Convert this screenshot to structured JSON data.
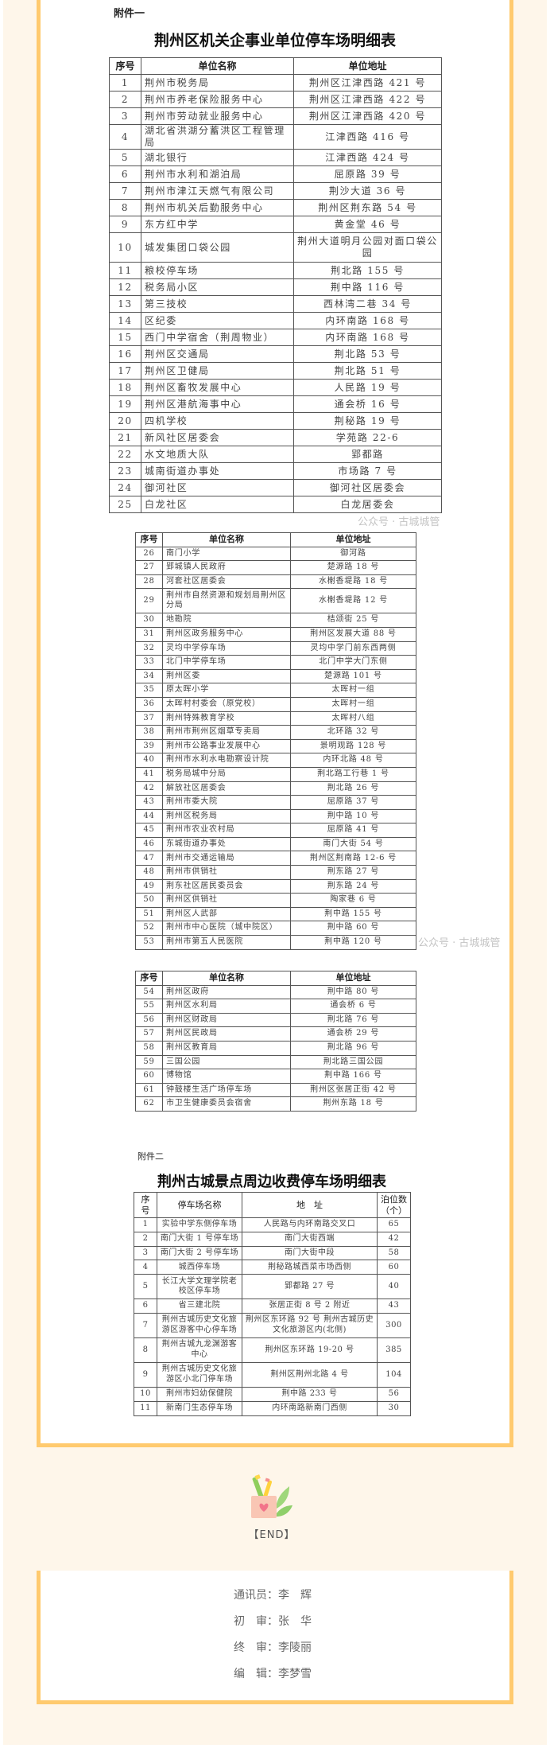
{
  "watermark": "公众号 · 古城城管",
  "annex1": {
    "label": "附件一",
    "title": "荆州区机关企事业单位停车场明细表",
    "headers": [
      "序号",
      "单位名称",
      "单位地址"
    ],
    "rows": [
      [
        "1",
        "荆州市税务局",
        "荆州区江津西路 421 号"
      ],
      [
        "2",
        "荆州市养老保险服务中心",
        "荆州区江津西路 422 号"
      ],
      [
        "3",
        "荆州市劳动就业服务中心",
        "荆州区江津西路 420 号"
      ],
      [
        "4",
        "湖北省洪湖分蓄洪区工程管理局",
        "江津西路 416 号"
      ],
      [
        "5",
        "湖北银行",
        "江津西路 424 号"
      ],
      [
        "6",
        "荆州市水利和湖泊局",
        "屈原路 39 号"
      ],
      [
        "7",
        "荆州市津江天燃气有限公司",
        "荆沙大道 36 号"
      ],
      [
        "8",
        "荆州市机关后勤服务中心",
        "荆州区荆东路 54 号"
      ],
      [
        "9",
        "东方红中学",
        "黄金堂 46 号"
      ],
      [
        "10",
        "城发集团口袋公园",
        "荆州大道明月公园对面口袋公园"
      ],
      [
        "11",
        "粮校停车场",
        "荆北路 155 号"
      ],
      [
        "12",
        "税务局小区",
        "荆中路 116 号"
      ],
      [
        "13",
        "第三技校",
        "西林湾二巷 34 号"
      ],
      [
        "14",
        "区纪委",
        "内环南路 168 号"
      ],
      [
        "15",
        "西门中学宿舍（荆周物业）",
        "内环南路 168 号"
      ],
      [
        "16",
        "荆州区交通局",
        "荆北路 53 号"
      ],
      [
        "17",
        "荆州区卫健局",
        "荆北路 51 号"
      ],
      [
        "18",
        "荆州区畜牧发展中心",
        "人民路 19 号"
      ],
      [
        "19",
        "荆州区港航海事中心",
        "通会桥 16 号"
      ],
      [
        "20",
        "四机学校",
        "荆秘路 19 号"
      ],
      [
        "21",
        "新风社区居委会",
        "学苑路 22-6"
      ],
      [
        "22",
        "水文地质大队",
        "郢都路"
      ],
      [
        "23",
        "城南街道办事处",
        "市场路 7 号"
      ],
      [
        "24",
        "御河社区",
        "御河社区居委会"
      ],
      [
        "25",
        "白龙社区",
        "白龙居委会"
      ]
    ],
    "rows_b": [
      [
        "26",
        "南门小学",
        "御河路"
      ],
      [
        "27",
        "郢城镇人民政府",
        "楚源路 18 号"
      ],
      [
        "28",
        "河套社区居委会",
        "水榭香堤路 18 号"
      ],
      [
        "29",
        "荆州市自然资源和规划局荆州区分局",
        "水榭香堤路 12 号"
      ],
      [
        "30",
        "地勘院",
        "桔颂街 25 号"
      ],
      [
        "31",
        "荆州区政务服务中心",
        "荆州区发展大道 88 号"
      ],
      [
        "32",
        "灵均中学停车场",
        "灵均中学门前东西两侧"
      ],
      [
        "33",
        "北门中学停车场",
        "北门中学大门东侧"
      ],
      [
        "34",
        "荆州区委",
        "楚源路 101 号"
      ],
      [
        "35",
        "原太晖小学",
        "太晖村一组"
      ],
      [
        "36",
        "太晖村村委会（原党校）",
        "太晖村一组"
      ],
      [
        "37",
        "荆州特殊教育学校",
        "太晖村八组"
      ],
      [
        "38",
        "荆州市荆州区烟草专卖局",
        "北环路 32 号"
      ],
      [
        "39",
        "荆州市公路事业发展中心",
        "景明观路 128 号"
      ],
      [
        "40",
        "荆州市水利水电勘察设计院",
        "内环北路 48 号"
      ],
      [
        "41",
        "税务局城中分局",
        "荆北路工行巷 1 号"
      ],
      [
        "42",
        "解放社区居委会",
        "荆北路 26 号"
      ],
      [
        "43",
        "荆州市委大院",
        "屈原路 37 号"
      ],
      [
        "44",
        "荆州区税务局",
        "荆中路 10 号"
      ],
      [
        "45",
        "荆州市农业农村局",
        "屈原路 41 号"
      ],
      [
        "46",
        "东城街道办事处",
        "南门大街 54 号"
      ],
      [
        "47",
        "荆州市交通运输局",
        "荆州区荆南路 12-6 号"
      ],
      [
        "48",
        "荆州市供销社",
        "荆东路 27 号"
      ],
      [
        "49",
        "荆东社区居民委员会",
        "荆东路 24 号"
      ],
      [
        "50",
        "荆州区供销社",
        "陶家巷 6 号"
      ],
      [
        "51",
        "荆州区人武部",
        "荆中路 155 号"
      ],
      [
        "52",
        "荆州市中心医院（城中院区）",
        "荆中路 60 号"
      ],
      [
        "53",
        "荆州市第五人民医院",
        "荆中路 120 号"
      ]
    ],
    "rows_c": [
      [
        "54",
        "荆州区政府",
        "荆中路 80 号"
      ],
      [
        "55",
        "荆州区水利局",
        "通会桥 6 号"
      ],
      [
        "56",
        "荆州区财政局",
        "荆北路 76 号"
      ],
      [
        "57",
        "荆州区民政局",
        "通会桥 29 号"
      ],
      [
        "58",
        "荆州区教育局",
        "荆北路 96 号"
      ],
      [
        "59",
        "三国公园",
        "荆北路三国公园"
      ],
      [
        "60",
        "博物馆",
        "荆中路 166 号"
      ],
      [
        "61",
        "钟鼓楼生活广场停车场",
        "荆州区张居正街 42 号"
      ],
      [
        "62",
        "市卫生健康委员会宿舍",
        "荆州东路 18 号"
      ]
    ]
  },
  "annex2": {
    "label": "附件二",
    "title": "荆州古城景点周边收费停车场明细表",
    "headers": [
      "序号",
      "停车场名称",
      "地　址",
      "泊位数（个）"
    ],
    "rows": [
      [
        "1",
        "实验中学东侧停车场",
        "人民路与内环南路交叉口",
        "65"
      ],
      [
        "2",
        "南门大街 1 号停车场",
        "南门大街西端",
        "42"
      ],
      [
        "3",
        "南门大街 2 号停车场",
        "南门大街中段",
        "58"
      ],
      [
        "4",
        "城西停车场",
        "荆秘路城西菜市场西侧",
        "60"
      ],
      [
        "5",
        "长江大学文理学院老校区停车场",
        "郢都路 27 号",
        "40"
      ],
      [
        "6",
        "省三建北院",
        "张居正街 8 号 2 附近",
        "43"
      ],
      [
        "7",
        "荆州古城历史文化旅游区游客中心停车场",
        "荆州区东环路 92 号 荆州古城历史文化旅游区内(北侧)",
        "300"
      ],
      [
        "8",
        "荆州古城九龙渊游客中心",
        "荆州区东环路 19-20 号",
        "385"
      ],
      [
        "9",
        "荆州古城历史文化旅游区小北门停车场",
        "荆州区荆州北路 4 号",
        "104"
      ],
      [
        "10",
        "荆州市妇幼保健院",
        "荆中路 233 号",
        "56"
      ],
      [
        "11",
        "新南门生态停车场",
        "内环南路新南门西侧",
        "30"
      ]
    ]
  },
  "end_label": "【END】",
  "credits": [
    "通讯员：李　辉",
    "初　审：张　华",
    "终　审：李陵丽",
    "编　辑：李梦雪"
  ],
  "colors": {
    "background": "#fef6ea",
    "frame": "#ffca6e"
  }
}
